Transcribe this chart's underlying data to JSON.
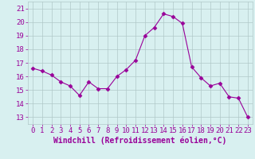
{
  "x": [
    0,
    1,
    2,
    3,
    4,
    5,
    6,
    7,
    8,
    9,
    10,
    11,
    12,
    13,
    14,
    15,
    16,
    17,
    18,
    19,
    20,
    21,
    22,
    23
  ],
  "y": [
    16.6,
    16.4,
    16.1,
    15.6,
    15.3,
    14.6,
    15.6,
    15.1,
    15.1,
    16.0,
    16.5,
    17.2,
    19.0,
    19.6,
    20.6,
    20.4,
    19.9,
    16.7,
    15.9,
    15.3,
    15.5,
    14.5,
    14.4,
    13.0
  ],
  "line_color": "#990099",
  "marker": "D",
  "marker_size": 2.5,
  "bg_color": "#d8f0f0",
  "grid_color": "#b0c8c8",
  "xlabel": "Windchill (Refroidissement éolien,°C)",
  "ylabel_ticks": [
    13,
    14,
    15,
    16,
    17,
    18,
    19,
    20,
    21
  ],
  "xlim": [
    -0.5,
    23.5
  ],
  "ylim": [
    12.5,
    21.5
  ],
  "tick_color": "#990099",
  "label_color": "#990099",
  "axis_fontsize": 6.5,
  "xlabel_fontsize": 7.0
}
